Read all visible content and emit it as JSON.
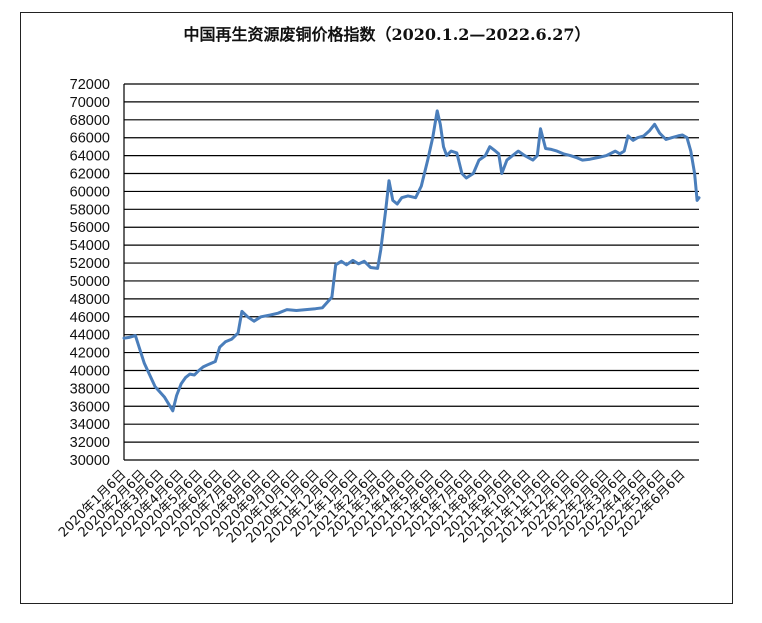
{
  "chart_data": {
    "type": "line",
    "title": "中国再生资源废铜价格指数（2020.1.2—2022.6.27）",
    "ylim": [
      30000,
      72000
    ],
    "yticks": [
      "72000",
      "70000",
      "68000",
      "66000",
      "64000",
      "62000",
      "60000",
      "58000",
      "56000",
      "54000",
      "52000",
      "50000",
      "48000",
      "46000",
      "44000",
      "42000",
      "40000",
      "38000",
      "36000",
      "34000",
      "32000",
      "30000"
    ],
    "grid": true,
    "legend": "none",
    "x_range": [
      "2020-01-02",
      "2022-06-27"
    ],
    "x_tick_labels": [
      "2020年1月6日",
      "2020年2月6日",
      "2020年3月6日",
      "2020年4月6日",
      "2020年5月6日",
      "2020年6月6日",
      "2020年7月6日",
      "2020年8月6日",
      "2020年9月6日",
      "2020年10月6日",
      "2020年11月6日",
      "2020年12月6日",
      "2021年1月6日",
      "2021年2月6日",
      "2021年3月6日",
      "2021年4月6日",
      "2021年5月6日",
      "2021年6月6日",
      "2021年7月6日",
      "2021年8月6日",
      "2021年9月6日",
      "2021年10月6日",
      "2021年11月6日",
      "2021年12月6日",
      "2022年1月6日",
      "2022年2月6日",
      "2022年3月6日",
      "2022年4月6日",
      "2022年5月6日",
      "2022年6月6日"
    ],
    "x_tick_dates": [
      "2020-01-06",
      "2020-02-06",
      "2020-03-06",
      "2020-04-06",
      "2020-05-06",
      "2020-06-06",
      "2020-07-06",
      "2020-08-06",
      "2020-09-06",
      "2020-10-06",
      "2020-11-06",
      "2020-12-06",
      "2021-01-06",
      "2021-02-06",
      "2021-03-06",
      "2021-04-06",
      "2021-05-06",
      "2021-06-06",
      "2021-07-06",
      "2021-08-06",
      "2021-09-06",
      "2021-10-06",
      "2021-11-06",
      "2021-12-06",
      "2022-01-06",
      "2022-02-06",
      "2022-03-06",
      "2022-04-06",
      "2022-05-06",
      "2022-06-06"
    ],
    "series": [
      {
        "color": "#4a7ebb",
        "points": [
          [
            "2020-01-02",
            43600
          ],
          [
            "2020-01-10",
            43700
          ],
          [
            "2020-01-20",
            43900
          ],
          [
            "2020-02-03",
            40800
          ],
          [
            "2020-02-20",
            38200
          ],
          [
            "2020-03-06",
            37000
          ],
          [
            "2020-03-19",
            35500
          ],
          [
            "2020-03-25",
            37200
          ],
          [
            "2020-04-01",
            38500
          ],
          [
            "2020-04-08",
            39200
          ],
          [
            "2020-04-15",
            39600
          ],
          [
            "2020-04-22",
            39500
          ],
          [
            "2020-04-29",
            40000
          ],
          [
            "2020-05-06",
            40400
          ],
          [
            "2020-05-15",
            40700
          ],
          [
            "2020-05-25",
            41000
          ],
          [
            "2020-06-01",
            42600
          ],
          [
            "2020-06-10",
            43200
          ],
          [
            "2020-06-20",
            43500
          ],
          [
            "2020-06-30",
            44200
          ],
          [
            "2020-07-06",
            46600
          ],
          [
            "2020-07-15",
            46000
          ],
          [
            "2020-07-25",
            45500
          ],
          [
            "2020-08-05",
            46000
          ],
          [
            "2020-08-20",
            46200
          ],
          [
            "2020-09-01",
            46400
          ],
          [
            "2020-09-15",
            46800
          ],
          [
            "2020-09-30",
            46700
          ],
          [
            "2020-10-15",
            46800
          ],
          [
            "2020-10-30",
            46900
          ],
          [
            "2020-11-10",
            47000
          ],
          [
            "2020-11-25",
            48200
          ],
          [
            "2020-12-01",
            51800
          ],
          [
            "2020-12-10",
            52200
          ],
          [
            "2020-12-18",
            51800
          ],
          [
            "2020-12-28",
            52300
          ],
          [
            "2021-01-06",
            51900
          ],
          [
            "2021-01-15",
            52200
          ],
          [
            "2021-01-25",
            51500
          ],
          [
            "2021-02-05",
            51400
          ],
          [
            "2021-02-10",
            53500
          ],
          [
            "2021-02-18",
            58000
          ],
          [
            "2021-02-23",
            61200
          ],
          [
            "2021-03-01",
            59000
          ],
          [
            "2021-03-08",
            58600
          ],
          [
            "2021-03-15",
            59300
          ],
          [
            "2021-03-25",
            59500
          ],
          [
            "2021-04-06",
            59300
          ],
          [
            "2021-04-15",
            60600
          ],
          [
            "2021-04-25",
            63500
          ],
          [
            "2021-05-03",
            66000
          ],
          [
            "2021-05-10",
            69000
          ],
          [
            "2021-05-15",
            67500
          ],
          [
            "2021-05-20",
            65000
          ],
          [
            "2021-05-25",
            64000
          ],
          [
            "2021-06-01",
            64500
          ],
          [
            "2021-06-10",
            64300
          ],
          [
            "2021-06-18",
            62000
          ],
          [
            "2021-06-25",
            61500
          ],
          [
            "2021-07-06",
            62000
          ],
          [
            "2021-07-15",
            63500
          ],
          [
            "2021-07-25",
            64000
          ],
          [
            "2021-08-01",
            65000
          ],
          [
            "2021-08-10",
            64500
          ],
          [
            "2021-08-15",
            64200
          ],
          [
            "2021-08-20",
            62000
          ],
          [
            "2021-08-28",
            63500
          ],
          [
            "2021-09-06",
            64000
          ],
          [
            "2021-09-15",
            64500
          ],
          [
            "2021-09-25",
            64000
          ],
          [
            "2021-10-08",
            63500
          ],
          [
            "2021-10-15",
            64000
          ],
          [
            "2021-10-20",
            67000
          ],
          [
            "2021-10-28",
            64800
          ],
          [
            "2021-11-06",
            64700
          ],
          [
            "2021-11-15",
            64500
          ],
          [
            "2021-11-25",
            64200
          ],
          [
            "2021-12-06",
            64000
          ],
          [
            "2021-12-15",
            63800
          ],
          [
            "2021-12-25",
            63500
          ],
          [
            "2022-01-06",
            63600
          ],
          [
            "2022-01-20",
            63800
          ],
          [
            "2022-02-01",
            64000
          ],
          [
            "2022-02-15",
            64500
          ],
          [
            "2022-02-22",
            64200
          ],
          [
            "2022-03-01",
            64500
          ],
          [
            "2022-03-07",
            66200
          ],
          [
            "2022-03-15",
            65700
          ],
          [
            "2022-03-22",
            66000
          ],
          [
            "2022-04-01",
            66200
          ],
          [
            "2022-04-10",
            66800
          ],
          [
            "2022-04-18",
            67500
          ],
          [
            "2022-04-26",
            66500
          ],
          [
            "2022-05-06",
            65800
          ],
          [
            "2022-05-15",
            66000
          ],
          [
            "2022-05-25",
            66200
          ],
          [
            "2022-06-01",
            66300
          ],
          [
            "2022-06-08",
            66000
          ],
          [
            "2022-06-14",
            64500
          ],
          [
            "2022-06-20",
            62000
          ],
          [
            "2022-06-24",
            59000
          ],
          [
            "2022-06-27",
            59300
          ]
        ]
      }
    ]
  }
}
